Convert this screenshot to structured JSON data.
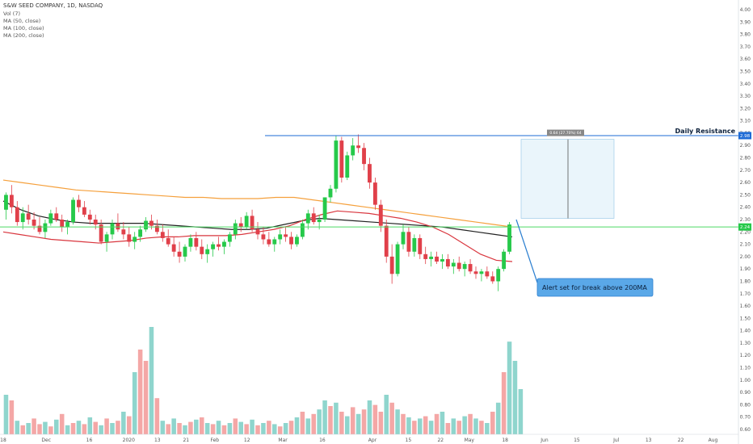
{
  "legend": {
    "title": "S&W SEED COMPANY, 1D, NASDAQ",
    "vol": "Vol (7)",
    "ma50": "MA (50, close)",
    "ma100": "MA (100, close)",
    "ma200": "MA (200, close)"
  },
  "annotations": {
    "daily_resistance": "Daily Resistance",
    "resistance_price": "2.98",
    "current_price": "2.24",
    "measure_label": "0.64 (27.70%) 64",
    "alert_text": "Alert set for break above 200MA"
  },
  "colors": {
    "up": "#26c94a",
    "down": "#e0404a",
    "vol_up": "#8fd5cd",
    "vol_down": "#f4a7a6",
    "ma50": "#d9363e",
    "ma100": "#222222",
    "ma200": "#f5a03c",
    "resistance": "#1e6bd6",
    "current": "#4cd964",
    "callout": "#5aa8e8",
    "measure_box": "#eaf5fb"
  },
  "chart_data": {
    "type": "candlestick",
    "title": "S&W SEED COMPANY, 1D, NASDAQ",
    "ylim": [
      0.6,
      4.0
    ],
    "y_ticks": [
      "4.00",
      "3.90",
      "3.80",
      "3.70",
      "3.60",
      "3.50",
      "3.40",
      "3.30",
      "3.20",
      "3.10",
      "3.00",
      "2.90",
      "2.80",
      "2.70",
      "2.60",
      "2.50",
      "2.40",
      "2.30",
      "2.20",
      "2.10",
      "2.00",
      "1.90",
      "1.80",
      "1.70",
      "1.60",
      "1.50",
      "1.40",
      "1.30",
      "1.20",
      "1.10",
      "1.00",
      "0.90",
      "0.80",
      "0.70",
      "0.60"
    ],
    "x_ticks": [
      "18",
      "Dec",
      "16",
      "2020",
      "13",
      "21",
      "Feb",
      "12",
      "Mar",
      "16",
      "Apr",
      "15",
      "22",
      "May",
      "18",
      "Jun",
      "15",
      "Jul",
      "13",
      "22",
      "Aug"
    ],
    "x_tick_bars": [
      0,
      12,
      24,
      35,
      43,
      51,
      59,
      68,
      78,
      89,
      103,
      113,
      122,
      130,
      140,
      151,
      160,
      171,
      180,
      189,
      198
    ],
    "bars_visible": 206,
    "candles": [
      [
        2.38,
        2.52,
        2.3,
        2.5
      ],
      [
        2.5,
        2.58,
        2.35,
        2.4
      ],
      [
        2.4,
        2.45,
        2.25,
        2.28
      ],
      [
        2.28,
        2.4,
        2.22,
        2.35
      ],
      [
        2.35,
        2.42,
        2.26,
        2.3
      ],
      [
        2.3,
        2.36,
        2.22,
        2.25
      ],
      [
        2.25,
        2.32,
        2.18,
        2.2
      ],
      [
        2.2,
        2.3,
        2.15,
        2.27
      ],
      [
        2.27,
        2.38,
        2.25,
        2.35
      ],
      [
        2.35,
        2.4,
        2.28,
        2.3
      ],
      [
        2.3,
        2.34,
        2.2,
        2.24
      ],
      [
        2.24,
        2.3,
        2.18,
        2.28
      ],
      [
        2.28,
        2.48,
        2.26,
        2.46
      ],
      [
        2.46,
        2.5,
        2.36,
        2.4
      ],
      [
        2.4,
        2.45,
        2.32,
        2.34
      ],
      [
        2.34,
        2.38,
        2.26,
        2.3
      ],
      [
        2.3,
        2.34,
        2.22,
        2.26
      ],
      [
        2.26,
        2.3,
        2.1,
        2.12
      ],
      [
        2.12,
        2.2,
        2.04,
        2.18
      ],
      [
        2.18,
        2.3,
        2.14,
        2.27
      ],
      [
        2.27,
        2.35,
        2.2,
        2.22
      ],
      [
        2.22,
        2.28,
        2.14,
        2.18
      ],
      [
        2.18,
        2.24,
        2.08,
        2.12
      ],
      [
        2.12,
        2.2,
        2.06,
        2.16
      ],
      [
        2.16,
        2.25,
        2.12,
        2.22
      ],
      [
        2.22,
        2.32,
        2.2,
        2.29
      ],
      [
        2.29,
        2.34,
        2.22,
        2.25
      ],
      [
        2.25,
        2.3,
        2.18,
        2.2
      ],
      [
        2.2,
        2.26,
        2.12,
        2.15
      ],
      [
        2.15,
        2.22,
        2.08,
        2.1
      ],
      [
        2.1,
        2.16,
        2.0,
        2.04
      ],
      [
        2.04,
        2.12,
        1.95,
        2.0
      ],
      [
        2.0,
        2.1,
        1.96,
        2.08
      ],
      [
        2.08,
        2.18,
        2.04,
        2.15
      ],
      [
        2.15,
        2.2,
        2.05,
        2.08
      ],
      [
        2.08,
        2.14,
        1.98,
        2.02
      ],
      [
        2.02,
        2.1,
        1.95,
        2.06
      ],
      [
        2.06,
        2.12,
        2.0,
        2.1
      ],
      [
        2.1,
        2.16,
        2.05,
        2.08
      ],
      [
        2.08,
        2.14,
        2.02,
        2.12
      ],
      [
        2.12,
        2.2,
        2.08,
        2.18
      ],
      [
        2.18,
        2.3,
        2.14,
        2.27
      ],
      [
        2.27,
        2.32,
        2.2,
        2.24
      ],
      [
        2.24,
        2.36,
        2.22,
        2.33
      ],
      [
        2.33,
        2.38,
        2.2,
        2.22
      ],
      [
        2.22,
        2.28,
        2.14,
        2.18
      ],
      [
        2.18,
        2.24,
        2.1,
        2.14
      ],
      [
        2.14,
        2.2,
        2.08,
        2.1
      ],
      [
        2.1,
        2.16,
        2.04,
        2.14
      ],
      [
        2.14,
        2.22,
        2.1,
        2.18
      ],
      [
        2.18,
        2.24,
        2.12,
        2.16
      ],
      [
        2.16,
        2.2,
        2.06,
        2.1
      ],
      [
        2.1,
        2.18,
        2.08,
        2.16
      ],
      [
        2.16,
        2.3,
        2.14,
        2.27
      ],
      [
        2.27,
        2.38,
        2.22,
        2.35
      ],
      [
        2.35,
        2.4,
        2.26,
        2.28
      ],
      [
        2.28,
        2.34,
        2.22,
        2.3
      ],
      [
        2.3,
        2.45,
        2.28,
        2.48
      ],
      [
        2.48,
        2.58,
        2.44,
        2.55
      ],
      [
        2.55,
        2.98,
        2.52,
        2.94
      ],
      [
        2.94,
        2.97,
        2.6,
        2.64
      ],
      [
        2.64,
        2.85,
        2.62,
        2.82
      ],
      [
        2.82,
        2.96,
        2.78,
        2.9
      ],
      [
        2.9,
        2.99,
        2.84,
        2.88
      ],
      [
        2.88,
        2.92,
        2.7,
        2.75
      ],
      [
        2.75,
        2.8,
        2.55,
        2.6
      ],
      [
        2.6,
        2.64,
        2.38,
        2.42
      ],
      [
        2.42,
        2.46,
        2.2,
        2.25
      ],
      [
        2.25,
        2.3,
        1.95,
        2.0
      ],
      [
        2.0,
        2.1,
        1.78,
        1.86
      ],
      [
        1.86,
        2.12,
        1.84,
        2.1
      ],
      [
        2.1,
        2.26,
        2.06,
        2.2
      ],
      [
        2.2,
        2.24,
        2.0,
        2.04
      ],
      [
        2.04,
        2.18,
        2.0,
        2.15
      ],
      [
        2.15,
        2.18,
        1.98,
        2.02
      ],
      [
        2.02,
        2.08,
        1.94,
        1.98
      ],
      [
        1.98,
        2.04,
        1.92,
        2.0
      ],
      [
        2.0,
        2.04,
        1.94,
        1.96
      ],
      [
        1.96,
        2.02,
        1.9,
        1.98
      ],
      [
        1.98,
        2.02,
        1.9,
        1.92
      ],
      [
        1.92,
        1.98,
        1.86,
        1.95
      ],
      [
        1.95,
        2.0,
        1.88,
        1.9
      ],
      [
        1.9,
        1.96,
        1.84,
        1.94
      ],
      [
        1.94,
        1.98,
        1.86,
        1.88
      ],
      [
        1.88,
        1.92,
        1.82,
        1.86
      ],
      [
        1.86,
        1.9,
        1.8,
        1.88
      ],
      [
        1.88,
        1.92,
        1.82,
        1.84
      ],
      [
        1.84,
        1.88,
        1.78,
        1.8
      ],
      [
        1.8,
        1.92,
        1.72,
        1.9
      ],
      [
        1.9,
        2.06,
        1.88,
        2.04
      ],
      [
        2.04,
        2.28,
        2.02,
        2.26
      ]
    ],
    "candle_start_bar": 0,
    "candle_bar_step": 2.2,
    "ma50": [
      2.2,
      2.18,
      2.16,
      2.14,
      2.13,
      2.12,
      2.11,
      2.12,
      2.13,
      2.15,
      2.16,
      2.16,
      2.17,
      2.17,
      2.17,
      2.18,
      2.2,
      2.22,
      2.25,
      2.3,
      2.34,
      2.37,
      2.36,
      2.35,
      2.33,
      2.31,
      2.28,
      2.24,
      2.18,
      2.1,
      2.02,
      1.97,
      1.96
    ],
    "ma100": [
      2.45,
      2.38,
      2.33,
      2.3,
      2.28,
      2.27,
      2.27,
      2.27,
      2.27,
      2.26,
      2.25,
      2.24,
      2.23,
      2.22,
      2.22,
      2.23,
      2.26,
      2.29,
      2.31,
      2.3,
      2.29,
      2.28,
      2.27,
      2.26,
      2.25,
      2.24,
      2.22,
      2.2,
      2.18,
      2.16
    ],
    "ma200": [
      2.62,
      2.6,
      2.58,
      2.56,
      2.54,
      2.53,
      2.52,
      2.51,
      2.5,
      2.49,
      2.48,
      2.48,
      2.47,
      2.47,
      2.47,
      2.48,
      2.48,
      2.46,
      2.44,
      2.42,
      2.4,
      2.38,
      2.36,
      2.34,
      2.32,
      2.3,
      2.28,
      2.26,
      2.24
    ],
    "volume_relative": [
      0.35,
      0.3,
      0.12,
      0.08,
      0.1,
      0.14,
      0.09,
      0.11,
      0.07,
      0.13,
      0.18,
      0.08,
      0.1,
      0.12,
      0.09,
      0.15,
      0.11,
      0.08,
      0.14,
      0.1,
      0.12,
      0.2,
      0.16,
      0.55,
      0.75,
      0.65,
      0.95,
      0.32,
      0.12,
      0.09,
      0.14,
      0.1,
      0.08,
      0.11,
      0.13,
      0.15,
      0.1,
      0.09,
      0.12,
      0.08,
      0.1,
      0.14,
      0.11,
      0.09,
      0.13,
      0.08,
      0.1,
      0.12,
      0.09,
      0.07,
      0.1,
      0.12,
      0.15,
      0.2,
      0.14,
      0.18,
      0.22,
      0.3,
      0.25,
      0.28,
      0.2,
      0.16,
      0.24,
      0.18,
      0.22,
      0.3,
      0.26,
      0.2,
      0.35,
      0.28,
      0.22,
      0.18,
      0.15,
      0.12,
      0.14,
      0.16,
      0.12,
      0.18,
      0.2,
      0.1,
      0.14,
      0.12,
      0.16,
      0.18,
      0.14,
      0.12,
      0.1,
      0.2,
      0.28,
      0.55,
      0.82,
      0.65,
      0.4
    ],
    "volume_up": [
      true,
      false,
      true,
      false,
      true,
      false,
      false,
      true,
      false,
      true,
      false,
      true,
      false,
      true,
      false,
      true,
      false,
      true,
      false,
      true,
      false,
      true,
      false,
      true,
      false,
      false,
      true,
      false,
      true,
      false,
      true,
      false,
      true,
      false,
      true,
      false,
      true,
      false,
      true,
      false,
      true,
      false,
      true,
      false,
      true,
      false,
      true,
      false,
      true,
      false,
      true,
      false,
      true,
      false,
      true,
      false,
      true,
      true,
      false,
      true,
      false,
      true,
      false,
      true,
      false,
      true,
      false,
      false,
      true,
      false,
      true,
      false,
      true,
      false,
      true,
      false,
      true,
      false,
      true,
      false,
      true,
      false,
      true,
      false,
      true,
      false,
      true,
      false,
      true,
      false,
      true,
      true,
      true
    ]
  }
}
